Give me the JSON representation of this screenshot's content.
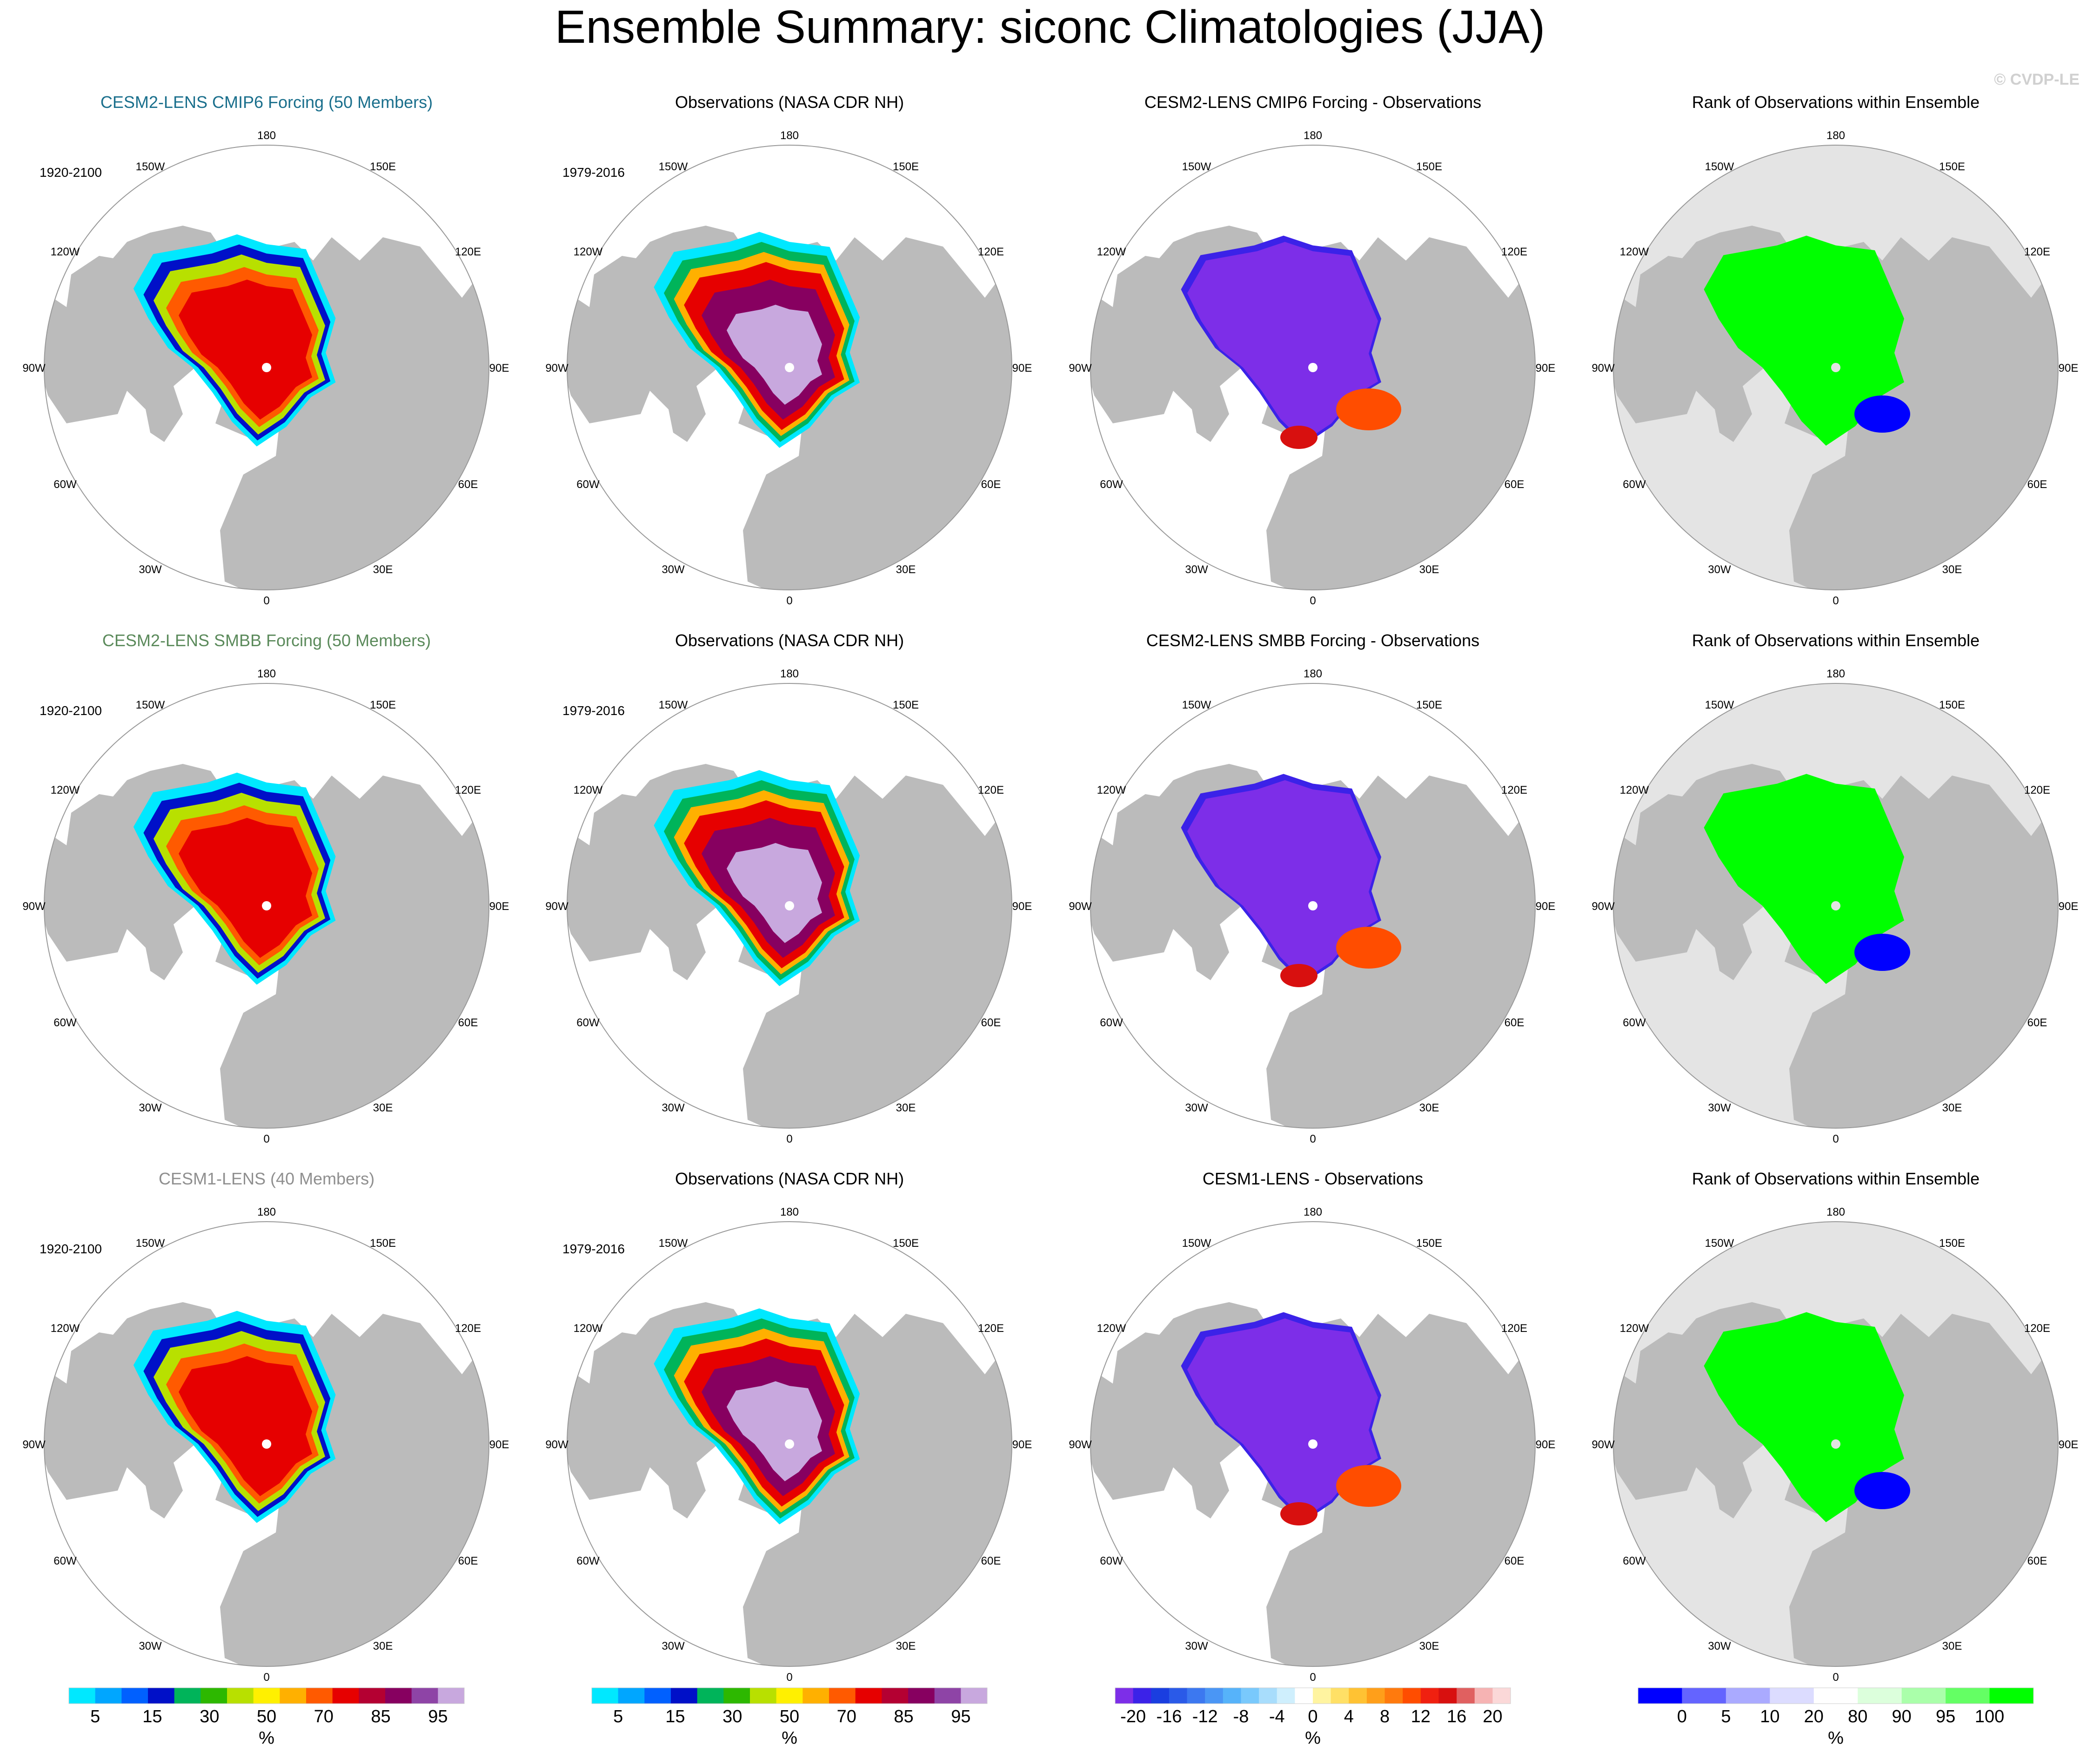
{
  "title": "Ensemble Summary: siconc Climatologies (JJA)",
  "watermark": "© CVDP-LE",
  "colors": {
    "land": "#bbbbbb",
    "ocean": "#ffffff",
    "rank_outside": "#e4e4e4",
    "title_cmip6": "#1a6f8c",
    "title_smbb": "#5b8a5b",
    "title_lens1": "#8f8f8f"
  },
  "lon_labels": [
    "180",
    "150E",
    "120E",
    "90E",
    "60E",
    "30E",
    "0",
    "30W",
    "60W",
    "90W",
    "120W",
    "150W"
  ],
  "rows": [
    {
      "panels": [
        {
          "kind": "model",
          "title": "CESM2-LENS CMIP6 Forcing (50 Members)",
          "title_color": "#1a6f8c",
          "period": "1920-2100"
        },
        {
          "kind": "obs",
          "title": "Observations (NASA CDR NH)",
          "period": "1979-2016"
        },
        {
          "kind": "diff",
          "title": "CESM2-LENS CMIP6 Forcing - Observations"
        },
        {
          "kind": "rank",
          "title": "Rank of Observations within Ensemble"
        }
      ]
    },
    {
      "panels": [
        {
          "kind": "model",
          "title": "CESM2-LENS SMBB Forcing (50 Members)",
          "title_color": "#5b8a5b",
          "period": "1920-2100"
        },
        {
          "kind": "obs",
          "title": "Observations (NASA CDR NH)",
          "period": "1979-2016"
        },
        {
          "kind": "diff",
          "title": "CESM2-LENS SMBB Forcing - Observations"
        },
        {
          "kind": "rank",
          "title": "Rank of Observations within Ensemble"
        }
      ]
    },
    {
      "panels": [
        {
          "kind": "model",
          "title": "CESM1-LENS (40 Members)",
          "title_color": "#8f8f8f",
          "period": "1920-2100"
        },
        {
          "kind": "obs",
          "title": "Observations (NASA CDR NH)",
          "period": "1979-2016"
        },
        {
          "kind": "diff",
          "title": "CESM1-LENS - Observations"
        },
        {
          "kind": "rank",
          "title": "Rank of Observations within Ensemble"
        }
      ]
    }
  ],
  "chart_data": {
    "type": "heatmap",
    "projection": "north-polar-stereographic",
    "variable": "siconc",
    "season": "JJA",
    "colorbars": [
      {
        "name": "siconc",
        "unit": "%",
        "levels": [
          5,
          10,
          15,
          20,
          30,
          40,
          50,
          60,
          70,
          80,
          85,
          90,
          95,
          99
        ],
        "tick_labels": [
          "5",
          "15",
          "30",
          "50",
          "70",
          "85",
          "95"
        ],
        "colors": [
          "#00e8ff",
          "#00a6ff",
          "#0060ff",
          "#0010c8",
          "#00b45a",
          "#2db800",
          "#b8e000",
          "#fff000",
          "#ffb000",
          "#ff5a00",
          "#e60000",
          "#b40032",
          "#870060",
          "#8e44a6",
          "#c8a8de"
        ]
      },
      {
        "name": "difference",
        "unit": "%",
        "levels": [
          -20,
          -18,
          -16,
          -14,
          -12,
          -10,
          -8,
          -6,
          -4,
          -2,
          0,
          2,
          4,
          6,
          8,
          10,
          12,
          14,
          16,
          18,
          20
        ],
        "tick_labels": [
          "-20",
          "-16",
          "-12",
          "-8",
          "-4",
          "0",
          "4",
          "8",
          "12",
          "16",
          "20"
        ],
        "colors": [
          "#7d2ee8",
          "#3b22e8",
          "#1a3ee0",
          "#2a5ae8",
          "#3c78f0",
          "#4a96f5",
          "#56b3fa",
          "#79c9fc",
          "#a8ddfc",
          "#cfeffd",
          "#ffffff",
          "#fff4a0",
          "#ffe066",
          "#ffc233",
          "#ff9f1a",
          "#ff7a0d",
          "#ff4d00",
          "#f02010",
          "#d8100f",
          "#e06060",
          "#f6b3b3",
          "#fbd8d8"
        ]
      },
      {
        "name": "rank",
        "unit": "%",
        "levels": [
          0,
          5,
          10,
          20,
          80,
          90,
          95,
          100
        ],
        "tick_labels": [
          "0",
          "5",
          "10",
          "20",
          "80",
          "90",
          "95",
          "100"
        ],
        "colors": [
          "#0000ff",
          "#6464ff",
          "#aaaaff",
          "#dcdcff",
          "#ffffff",
          "#dcffdc",
          "#aaffaa",
          "#64ff64",
          "#00ff00"
        ]
      }
    ],
    "colorbar_assignment": [
      "siconc",
      "siconc",
      "difference",
      "rank"
    ],
    "colorbar_unit_label": "%"
  }
}
